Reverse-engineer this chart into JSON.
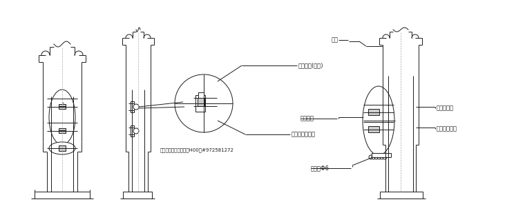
{
  "bg_color": "#ffffff",
  "line_color": "#1a1a1a",
  "gray": "#888888",
  "annotations": {
    "label1": "配电门盖(防水)",
    "label2": "圆头内三角螺丝",
    "label3": "中国市政工程电气资料H00册#972581272",
    "label4": "活叶",
    "label5": "配电门盖",
    "label6": "路灯接线盒",
    "label7": "门锁条Φ6",
    "label8": "专用接地螺栓"
  },
  "figsize": [
    7.6,
    3.09
  ],
  "dpi": 100
}
